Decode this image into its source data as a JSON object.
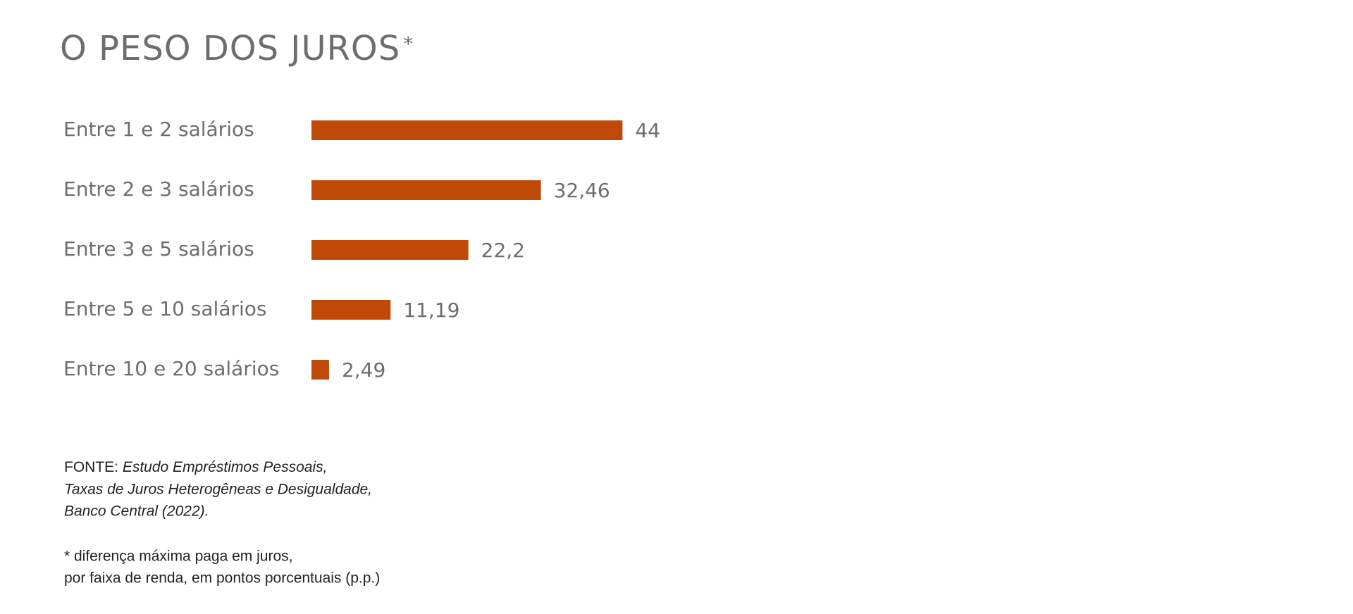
{
  "chart_data": {
    "type": "bar",
    "orientation": "horizontal",
    "title": "O PESO DOS JUROS",
    "title_suffix": "*",
    "categories": [
      "Entre 1 e 2 salários",
      "Entre 2 e 3 salários",
      "Entre 3 e 5 salários",
      "Entre 5 e 10 salários",
      "Entre 10 e 20 salários"
    ],
    "values": [
      44,
      32.46,
      22.2,
      11.19,
      2.49
    ],
    "value_labels": [
      "44",
      "32,46",
      "22,2",
      "11,19",
      "2,49"
    ],
    "color": "#bf4a08",
    "source_label": "FONTE:",
    "source_lines": [
      "Estudo Empréstimos Pessoais,",
      "Taxas de Juros Heterogêneas e Desigualdade,",
      "Banco Central (2022)."
    ],
    "footnote_lines": [
      "* diferença máxima paga em juros,",
      "por faixa de renda, em pontos porcentuais (p.p.)"
    ]
  }
}
